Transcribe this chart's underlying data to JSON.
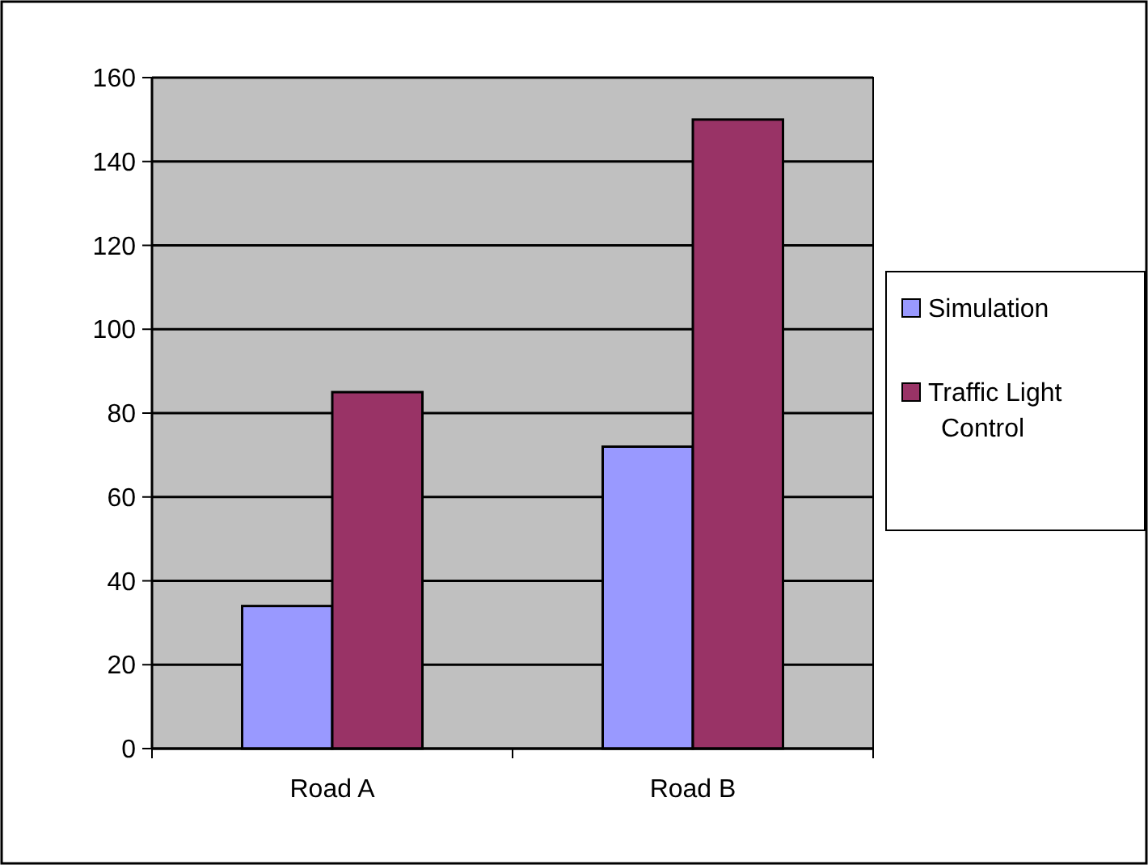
{
  "chart_data": {
    "type": "bar",
    "categories": [
      "Road A",
      "Road B"
    ],
    "series": [
      {
        "name": "Simulation",
        "color": "#9999ff",
        "values": [
          34,
          72
        ]
      },
      {
        "name": "Traffic Light Control",
        "color": "#993366",
        "values": [
          85,
          150
        ]
      }
    ],
    "ylim": [
      0,
      160
    ],
    "yticks": [
      0,
      20,
      40,
      60,
      80,
      100,
      120,
      140,
      160
    ],
    "grid": "y",
    "legend": "right"
  }
}
